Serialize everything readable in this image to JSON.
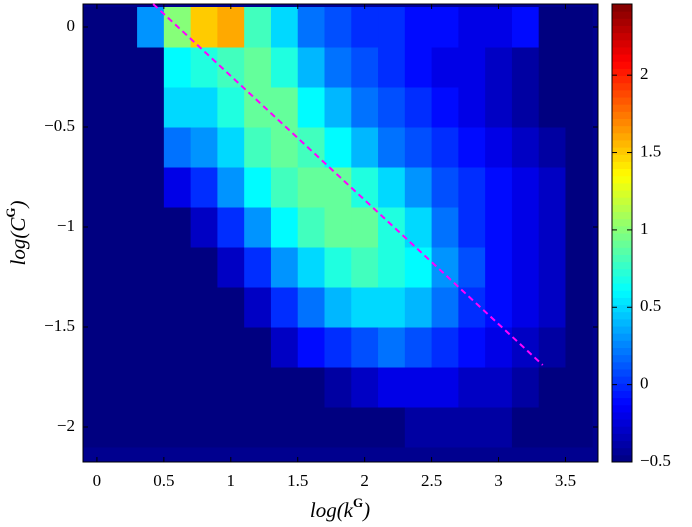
{
  "chart_data": {
    "type": "heatmap",
    "xlabel": [
      "log(k",
      "G",
      ")"
    ],
    "ylabel": [
      "log(C",
      "G",
      ")"
    ],
    "xlim": [
      -0.104,
      3.743
    ],
    "ylim": [
      -2.175,
      0.115
    ],
    "xticks": [
      0,
      0.5,
      1,
      1.5,
      2,
      2.5,
      3,
      3.5
    ],
    "yticks": [
      {
        "value": -2,
        "label": "−2"
      },
      {
        "value": -1.5,
        "label": "−1.5"
      },
      {
        "value": -1,
        "label": "−1"
      },
      {
        "value": -0.5,
        "label": "−0.5"
      },
      0
    ],
    "xbins": [
      -0.1,
      0.1,
      0.3,
      0.5,
      0.7,
      0.9,
      1.1,
      1.3,
      1.5,
      1.7,
      1.9,
      2.1,
      2.3,
      2.5,
      2.7,
      2.9,
      3.1,
      3.3,
      3.5,
      3.7
    ],
    "ybins": [
      -2.1,
      -1.9,
      -1.7,
      -1.5,
      -1.3,
      -1.1,
      -0.9,
      -0.7,
      -0.5,
      -0.3,
      -0.1,
      0.1
    ],
    "z": [
      [
        -0.5,
        -0.5,
        -0.5,
        -0.5,
        -0.5,
        -0.5,
        -0.5,
        -0.5,
        -0.5,
        -0.5,
        -0.5,
        -0.5,
        -0.4,
        -0.4,
        -0.4,
        -0.4,
        -0.5,
        -0.5,
        -0.5
      ],
      [
        -0.5,
        -0.5,
        -0.5,
        -0.5,
        -0.5,
        -0.5,
        -0.5,
        -0.5,
        -0.5,
        -0.4,
        -0.3,
        -0.2,
        -0.2,
        -0.2,
        -0.3,
        -0.3,
        -0.4,
        -0.5,
        -0.5
      ],
      [
        -0.5,
        -0.5,
        -0.5,
        -0.5,
        -0.5,
        -0.5,
        -0.5,
        -0.3,
        -0.1,
        0,
        0.1,
        0.2,
        0.1,
        0,
        -0.1,
        -0.2,
        -0.3,
        -0.4,
        -0.5
      ],
      [
        -0.5,
        -0.5,
        -0.5,
        -0.5,
        -0.5,
        -0.5,
        -0.3,
        0,
        0.2,
        0.4,
        0.5,
        0.5,
        0.4,
        0.2,
        0,
        -0.1,
        -0.2,
        -0.3,
        -0.5
      ],
      [
        -0.5,
        -0.5,
        -0.5,
        -0.5,
        -0.5,
        -0.3,
        0,
        0.3,
        0.5,
        0.7,
        0.8,
        0.7,
        0.6,
        0.3,
        0.1,
        -0.1,
        -0.2,
        -0.3,
        -0.5
      ],
      [
        -0.5,
        -0.5,
        -0.5,
        -0.5,
        -0.3,
        0,
        0.3,
        0.6,
        0.8,
        0.9,
        0.9,
        0.7,
        0.5,
        0.2,
        0,
        -0.1,
        -0.2,
        -0.3,
        -0.5
      ],
      [
        -0.5,
        -0.5,
        -0.5,
        -0.2,
        0,
        0.3,
        0.6,
        0.8,
        0.9,
        0.9,
        0.7,
        0.5,
        0.3,
        0.1,
        0,
        -0.1,
        -0.2,
        -0.3,
        -0.5
      ],
      [
        -0.5,
        -0.5,
        -0.5,
        0.2,
        0.3,
        0.5,
        0.8,
        0.9,
        0.8,
        0.6,
        0.4,
        0.2,
        0.1,
        0,
        -0.1,
        -0.2,
        -0.3,
        -0.4,
        -0.5
      ],
      [
        -0.5,
        -0.5,
        -0.5,
        0.5,
        0.5,
        0.7,
        0.9,
        0.9,
        0.6,
        0.4,
        0.2,
        0.1,
        0,
        -0.1,
        -0.2,
        -0.3,
        -0.4,
        -0.5,
        -0.5
      ],
      [
        -0.5,
        -0.5,
        -0.5,
        0.6,
        0.7,
        0.8,
        0.9,
        0.7,
        0.4,
        0.2,
        0.1,
        0,
        -0.1,
        -0.2,
        -0.2,
        -0.3,
        -0.4,
        -0.5,
        -0.5
      ],
      [
        -0.5,
        -0.5,
        0.3,
        1.0,
        1.5,
        1.6,
        0.8,
        0.5,
        0.2,
        0.1,
        0,
        0,
        -0.1,
        -0.1,
        -0.2,
        -0.2,
        -0.1,
        -0.5,
        -0.5
      ]
    ],
    "clim": [
      -0.5,
      2.46
    ],
    "cticks": [
      {
        "value": -0.5,
        "label": "−0.5"
      },
      0,
      0.5,
      1,
      1.5,
      2
    ],
    "fit_line": {
      "color": "#ff00ff",
      "x": [
        0.42,
        3.33
      ],
      "y": [
        0.115,
        -1.69
      ]
    }
  }
}
